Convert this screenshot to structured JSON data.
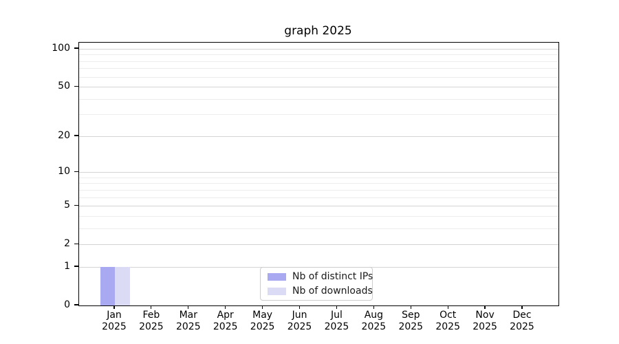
{
  "title": "graph 2025",
  "legend": [
    {
      "label": "Nb of distinct IPs",
      "color": "#a9a9f1"
    },
    {
      "label": "Nb of downloads",
      "color": "#dbdbf6"
    }
  ],
  "chart_data": {
    "type": "bar",
    "title": "graph 2025",
    "categories": [
      "Jan 2025",
      "Feb 2025",
      "Mar 2025",
      "Apr 2025",
      "May 2025",
      "Jun 2025",
      "Jul 2025",
      "Aug 2025",
      "Sep 2025",
      "Oct 2025",
      "Nov 2025",
      "Dec 2025"
    ],
    "x_months": [
      "Jan",
      "Feb",
      "Mar",
      "Apr",
      "May",
      "Jun",
      "Jul",
      "Aug",
      "Sep",
      "Oct",
      "Nov",
      "Dec"
    ],
    "x_year": "2025",
    "series": [
      {
        "name": "Nb of distinct IPs",
        "color": "#a9a9f1",
        "values": [
          1,
          0,
          0,
          0,
          0,
          0,
          0,
          0,
          0,
          0,
          0,
          0
        ]
      },
      {
        "name": "Nb of downloads",
        "color": "#dbdbf6",
        "values": [
          1,
          0,
          0,
          0,
          0,
          0,
          0,
          0,
          0,
          0,
          0,
          0
        ]
      }
    ],
    "yscale": "log(value+1)",
    "y_ticks": [
      0,
      1,
      2,
      5,
      10,
      20,
      50,
      100
    ],
    "y_minor_gridlines": [
      3,
      4,
      6,
      7,
      8,
      9,
      30,
      40,
      60,
      70,
      80,
      90
    ],
    "ylim_top_approx": 112,
    "grid": "horizontal",
    "legend_position": "lower center",
    "xlabel": "",
    "ylabel": ""
  }
}
